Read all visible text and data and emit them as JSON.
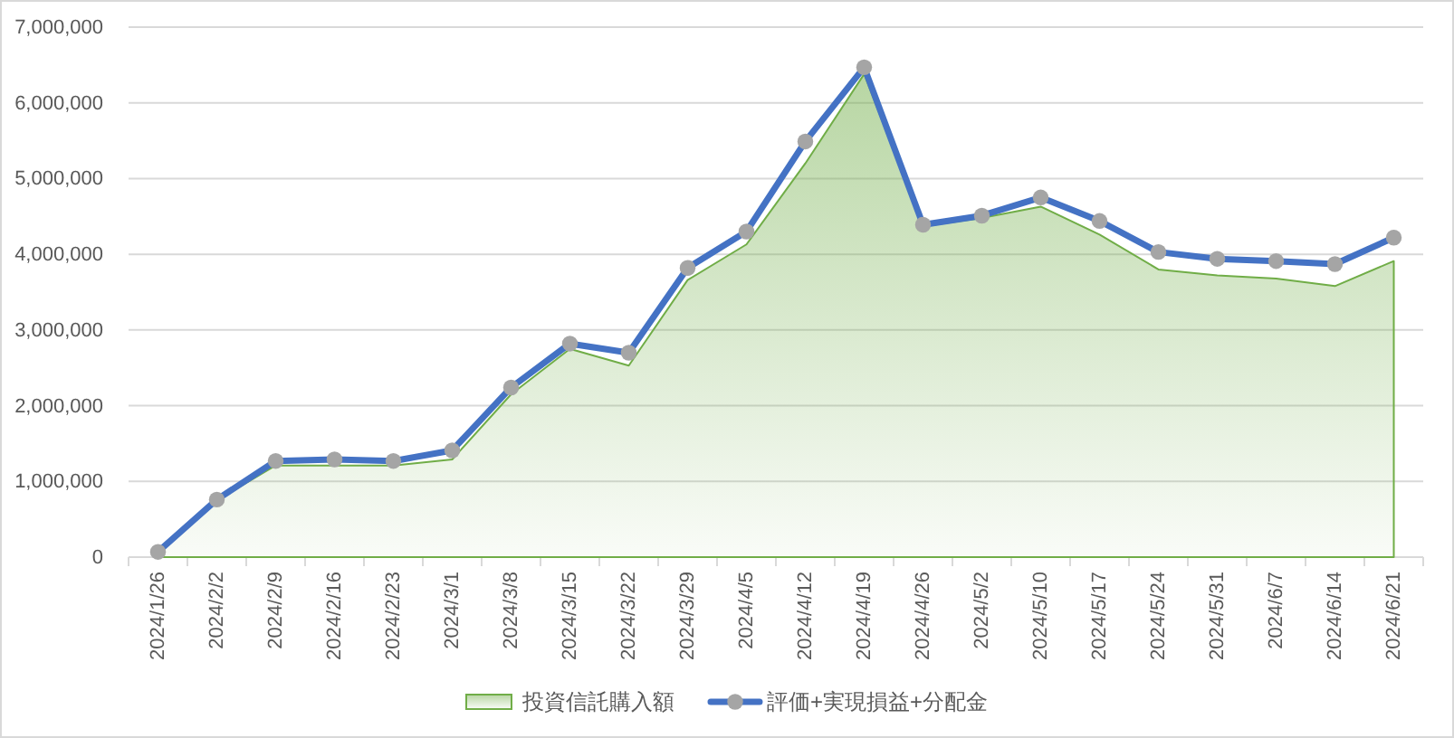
{
  "chart_data": {
    "type": "area",
    "categories": [
      "2024/1/26",
      "2024/2/2",
      "2024/2/9",
      "2024/2/16",
      "2024/2/23",
      "2024/3/1",
      "2024/3/8",
      "2024/3/15",
      "2024/3/22",
      "2024/3/29",
      "2024/4/5",
      "2024/4/12",
      "2024/4/19",
      "2024/4/26",
      "2024/5/2",
      "2024/5/10",
      "2024/5/17",
      "2024/5/24",
      "2024/5/31",
      "2024/6/7",
      "2024/6/14",
      "2024/6/21"
    ],
    "series": [
      {
        "name": "投資信託購入額",
        "color": "#70ad47",
        "values": [
          60000,
          750000,
          1210000,
          1210000,
          1210000,
          1290000,
          2150000,
          2750000,
          2530000,
          3660000,
          4130000,
          5200000,
          6380000,
          4370000,
          4480000,
          4630000,
          4260000,
          3800000,
          3720000,
          3680000,
          3580000,
          3910000
        ]
      },
      {
        "name": "評価+実現損益+分配金",
        "type": "line",
        "color": "#4472c4",
        "marker": "circle",
        "values": [
          70000,
          760000,
          1270000,
          1290000,
          1270000,
          1410000,
          2240000,
          2820000,
          2700000,
          3820000,
          4300000,
          5490000,
          6470000,
          4390000,
          4510000,
          4750000,
          4440000,
          4030000,
          3940000,
          3910000,
          3870000,
          4220000
        ]
      }
    ],
    "ylim": [
      0,
      7000000
    ],
    "yticks": [
      0,
      {
        "value": 1000000,
        "label": "1,000,000"
      },
      {
        "value": 2000000,
        "label": "2,000,000"
      },
      {
        "value": 3000000,
        "label": "3,000,000"
      },
      {
        "value": 4000000,
        "label": "4,000,000"
      },
      {
        "value": 5000000,
        "label": "5,000,000"
      },
      {
        "value": 6000000,
        "label": "6,000,000"
      },
      {
        "value": 7000000,
        "label": "7,000,000"
      }
    ],
    "grid": "y",
    "legend": "bottom"
  }
}
